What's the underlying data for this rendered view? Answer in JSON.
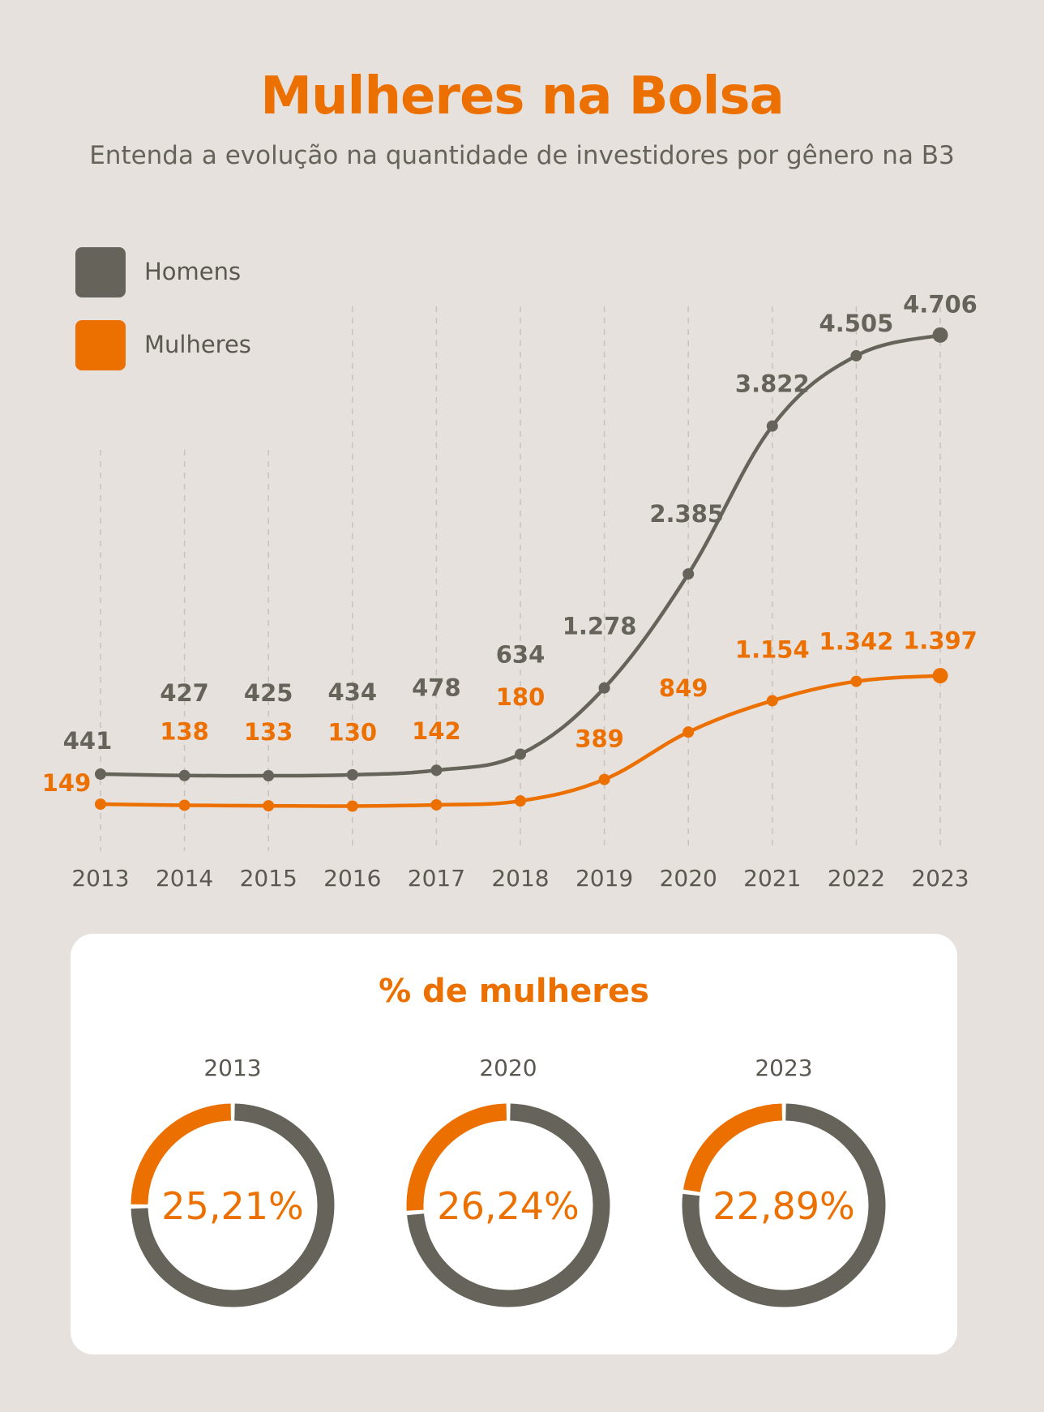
{
  "header": {
    "title": "Mulheres na Bolsa",
    "subtitle": "Entenda a evolução na quantidade de investidores por gênero na B3"
  },
  "legend": [
    {
      "label": "Homens",
      "color": "#66645a"
    },
    {
      "label": "Mulheres",
      "color": "#ec7000"
    }
  ],
  "chart_data": {
    "type": "line",
    "title": "Mulheres na Bolsa",
    "subtitle": "Entenda a evolução na quantidade de investidores por gênero na B3",
    "xlabel": "",
    "ylabel": "",
    "grid": "vertical dashed",
    "legend_position": "top-left",
    "categories": [
      "2013",
      "2014",
      "2015",
      "2016",
      "2017",
      "2018",
      "2019",
      "2020",
      "2021",
      "2022",
      "2023"
    ],
    "ylim": [
      0,
      5000
    ],
    "series": [
      {
        "name": "Homens",
        "color": "#66645a",
        "values": [
          441,
          427,
          425,
          434,
          478,
          634,
          1278,
          2385,
          3822,
          4505,
          4706
        ],
        "labels": [
          "441",
          "427",
          "425",
          "434",
          "478",
          "634",
          "1.278",
          "2.385",
          "3.822",
          "4.505",
          "4.706"
        ]
      },
      {
        "name": "Mulheres",
        "color": "#ec7000",
        "values": [
          149,
          138,
          133,
          130,
          142,
          180,
          389,
          849,
          1154,
          1342,
          1397
        ],
        "labels": [
          "149",
          "138",
          "133",
          "130",
          "142",
          "180",
          "389",
          "849",
          "1.154",
          "1.342",
          "1.397"
        ]
      }
    ]
  },
  "share": {
    "title": "% de mulheres",
    "women_color": "#ec7000",
    "men_color": "#66645a",
    "items": [
      {
        "year": "2013",
        "percent": 25.21,
        "label": "25,21%"
      },
      {
        "year": "2020",
        "percent": 26.24,
        "label": "26,24%"
      },
      {
        "year": "2023",
        "percent": 22.89,
        "label": "22,89%"
      }
    ]
  }
}
